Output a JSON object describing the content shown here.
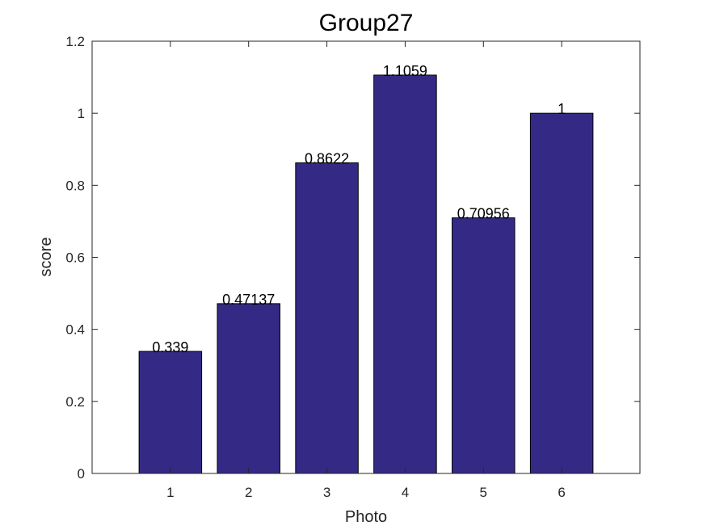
{
  "chart_data": {
    "type": "bar",
    "title": "Group27",
    "xlabel": "Photo",
    "ylabel": "score",
    "categories": [
      "1",
      "2",
      "3",
      "4",
      "5",
      "6"
    ],
    "values": [
      0.339,
      0.47137,
      0.8622,
      1.1059,
      0.70956,
      1
    ],
    "value_labels": [
      "0.339",
      "0.47137",
      "0.8622",
      "1.1059",
      "0.70956",
      "1"
    ],
    "ylim": [
      0,
      1.2
    ],
    "yticks": [
      0,
      0.2,
      0.4,
      0.6,
      0.8,
      1,
      1.2
    ],
    "ytick_labels": [
      "0",
      "0.2",
      "0.4",
      "0.6",
      "0.8",
      "1",
      "1.2"
    ],
    "xlim": [
      0,
      7
    ],
    "grid": false,
    "legend": "none",
    "bar_color": "#342a85",
    "bar_edge_color": "#000000"
  }
}
